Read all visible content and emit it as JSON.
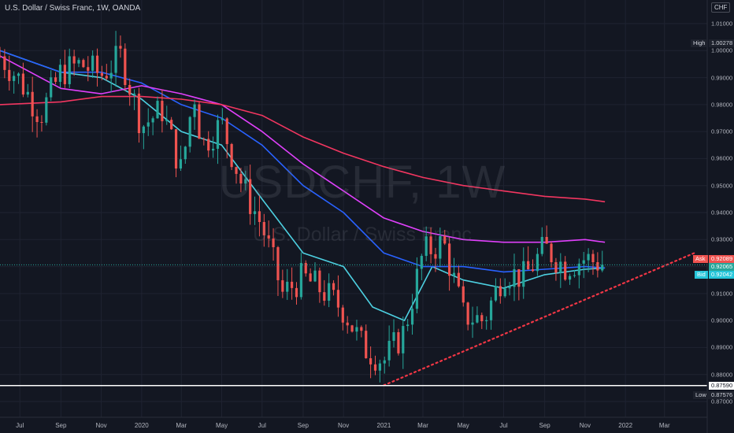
{
  "header": {
    "title": "U.S. Dollar / Swiss Franc, 1W, OANDA",
    "watermark_symbol": "USDCHF, 1W",
    "watermark_description": "U.S. Dollar / Swiss Franc",
    "currency_button": "CHF"
  },
  "price_tags": {
    "high_label": "High",
    "high_value": "1.00278",
    "ask_label": "Ask",
    "ask_value": "0.92089",
    "last_value": "0.92065",
    "bid_label": "Bid",
    "bid_value": "0.92042",
    "line_value": "0.87590",
    "low_label": "Low",
    "low_value": "0.87576"
  },
  "colors": {
    "background": "#131722",
    "up": "#26a69a",
    "down": "#ef5350",
    "ma_fast": "#4dd0e1",
    "ma_mid": "#2962ff",
    "ma_slow": "#e040fb",
    "ma_long": "#f23660",
    "trendline": "#f23645",
    "horizontal_line": "#ffffff",
    "last_price": "#26a69a"
  },
  "chart_data": {
    "type": "candlestick",
    "symbol": "USDCHF",
    "timeframe": "1W",
    "y_ticks": [
      "1.01000",
      "1.00000",
      "0.99000",
      "0.98000",
      "0.97000",
      "0.96000",
      "0.95000",
      "0.94000",
      "0.93000",
      "0.92000",
      "0.91000",
      "0.90000",
      "0.89000",
      "0.88000",
      "0.87000"
    ],
    "x_ticks": [
      "Jul",
      "Sep",
      "Nov",
      "2020",
      "Mar",
      "May",
      "Jul",
      "Sep",
      "Nov",
      "2021",
      "Mar",
      "May",
      "Jul",
      "Sep",
      "Nov",
      "2022",
      "Mar"
    ],
    "x_tick_dates": [
      "2019-07-01",
      "2019-09-01",
      "2019-11-01",
      "2020-01-01",
      "2020-03-01",
      "2020-05-01",
      "2020-07-01",
      "2020-09-01",
      "2020-11-01",
      "2021-01-01",
      "2021-03-01",
      "2021-05-01",
      "2021-07-01",
      "2021-09-01",
      "2021-11-01",
      "2022-01-01",
      "2022-03-01"
    ],
    "x_range": [
      "2019-06-01",
      "2022-05-01"
    ],
    "y_range": [
      0.8665,
      1.0135
    ],
    "ohlc_anchors": [
      [
        "2019-06-01",
        0.998
      ],
      [
        "2019-07-01",
        0.989
      ],
      [
        "2019-08-01",
        0.976
      ],
      [
        "2019-09-01",
        0.992
      ],
      [
        "2019-10-01",
        0.995
      ],
      [
        "2019-11-01",
        0.991
      ],
      [
        "2019-12-01",
        0.998
      ],
      [
        "2020-01-01",
        0.972
      ],
      [
        "2020-02-01",
        0.978
      ],
      [
        "2020-03-01",
        0.955
      ],
      [
        "2020-03-20",
        0.985
      ],
      [
        "2020-04-01",
        0.965
      ],
      [
        "2020-05-01",
        0.973
      ],
      [
        "2020-06-01",
        0.95
      ],
      [
        "2020-07-01",
        0.935
      ],
      [
        "2020-08-01",
        0.91
      ],
      [
        "2020-09-01",
        0.916
      ],
      [
        "2020-10-01",
        0.911
      ],
      [
        "2020-11-01",
        0.904
      ],
      [
        "2020-12-01",
        0.89
      ],
      [
        "2021-01-01",
        0.885
      ],
      [
        "2021-02-01",
        0.896
      ],
      [
        "2021-03-01",
        0.925
      ],
      [
        "2021-04-01",
        0.929
      ],
      [
        "2021-05-01",
        0.902
      ],
      [
        "2021-06-01",
        0.9
      ],
      [
        "2021-07-01",
        0.918
      ],
      [
        "2021-08-01",
        0.916
      ],
      [
        "2021-09-01",
        0.927
      ],
      [
        "2021-10-01",
        0.92
      ],
      [
        "2021-11-01",
        0.923
      ],
      [
        "2021-12-01",
        0.9206
      ]
    ],
    "moving_averages": [
      {
        "color": "#4dd0e1",
        "points": [
          [
            "2019-06-01",
            1.0
          ],
          [
            "2019-09-01",
            0.992
          ],
          [
            "2019-11-01",
            0.99
          ],
          [
            "2020-01-01",
            0.982
          ],
          [
            "2020-03-01",
            0.97
          ],
          [
            "2020-05-01",
            0.965
          ],
          [
            "2020-07-01",
            0.945
          ],
          [
            "2020-09-01",
            0.925
          ],
          [
            "2020-11-01",
            0.92
          ],
          [
            "2020-12-15",
            0.905
          ],
          [
            "2021-02-01",
            0.9
          ],
          [
            "2021-03-15",
            0.92
          ],
          [
            "2021-05-01",
            0.915
          ],
          [
            "2021-07-01",
            0.912
          ],
          [
            "2021-09-01",
            0.917
          ],
          [
            "2021-11-01",
            0.919
          ],
          [
            "2021-12-01",
            0.9195
          ]
        ]
      },
      {
        "color": "#2962ff",
        "points": [
          [
            "2019-06-01",
            1.0
          ],
          [
            "2019-09-01",
            0.992
          ],
          [
            "2019-11-01",
            0.992
          ],
          [
            "2020-01-01",
            0.988
          ],
          [
            "2020-03-01",
            0.98
          ],
          [
            "2020-05-01",
            0.975
          ],
          [
            "2020-07-01",
            0.965
          ],
          [
            "2020-09-01",
            0.95
          ],
          [
            "2020-11-01",
            0.94
          ],
          [
            "2021-01-01",
            0.925
          ],
          [
            "2021-03-01",
            0.92
          ],
          [
            "2021-05-01",
            0.92
          ],
          [
            "2021-07-01",
            0.918
          ],
          [
            "2021-09-01",
            0.919
          ],
          [
            "2021-11-01",
            0.92
          ],
          [
            "2021-12-01",
            0.9195
          ]
        ]
      },
      {
        "color": "#e040fb",
        "points": [
          [
            "2019-06-01",
            0.998
          ],
          [
            "2019-09-01",
            0.986
          ],
          [
            "2019-11-01",
            0.984
          ],
          [
            "2020-01-01",
            0.987
          ],
          [
            "2020-03-01",
            0.984
          ],
          [
            "2020-05-01",
            0.98
          ],
          [
            "2020-07-01",
            0.97
          ],
          [
            "2020-09-01",
            0.958
          ],
          [
            "2020-11-01",
            0.948
          ],
          [
            "2021-01-01",
            0.938
          ],
          [
            "2021-03-01",
            0.933
          ],
          [
            "2021-05-01",
            0.93
          ],
          [
            "2021-07-01",
            0.929
          ],
          [
            "2021-09-01",
            0.929
          ],
          [
            "2021-11-01",
            0.93
          ],
          [
            "2021-12-01",
            0.929
          ]
        ]
      },
      {
        "color": "#f23660",
        "points": [
          [
            "2019-06-01",
            0.98
          ],
          [
            "2019-09-01",
            0.981
          ],
          [
            "2019-11-01",
            0.983
          ],
          [
            "2020-01-01",
            0.983
          ],
          [
            "2020-03-01",
            0.982
          ],
          [
            "2020-05-01",
            0.98
          ],
          [
            "2020-07-01",
            0.976
          ],
          [
            "2020-09-01",
            0.968
          ],
          [
            "2020-11-01",
            0.962
          ],
          [
            "2021-01-01",
            0.957
          ],
          [
            "2021-03-01",
            0.953
          ],
          [
            "2021-05-01",
            0.95
          ],
          [
            "2021-07-01",
            0.948
          ],
          [
            "2021-09-01",
            0.946
          ],
          [
            "2021-11-01",
            0.945
          ],
          [
            "2021-12-01",
            0.944
          ]
        ]
      }
    ],
    "trendline": {
      "from": [
        "2021-01-01",
        0.876
      ],
      "to": [
        "2022-04-15",
        0.925
      ]
    },
    "horizontal_line": 0.8759,
    "current_price": 0.92065
  }
}
